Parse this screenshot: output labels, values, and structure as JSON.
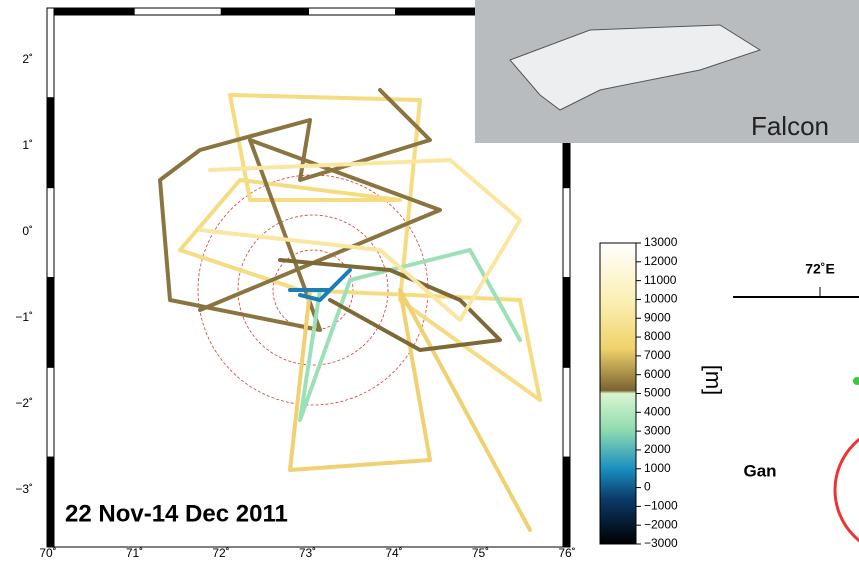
{
  "map": {
    "lat_labels": [
      "2˚",
      "1˚",
      "0˚",
      "−1˚",
      "−2˚",
      "−3˚"
    ],
    "lon_labels": [
      "70˚",
      "71˚",
      "72˚",
      "73˚",
      "74˚",
      "75˚",
      "76˚"
    ],
    "period": "22 Nov-14 Dec 2011"
  },
  "photo": {
    "caption": "Falcon"
  },
  "colorbar": {
    "labels": [
      "13000",
      "12000",
      "11000",
      "10000",
      "9000",
      "8000",
      "7000",
      "6000",
      "5000",
      "4000",
      "3000",
      "2000",
      "1000",
      "0",
      "−1000",
      "−2000",
      "−3000"
    ],
    "unit": "[m]"
  },
  "inset": {
    "lon_label": "72˚E",
    "place": "Gan"
  }
}
